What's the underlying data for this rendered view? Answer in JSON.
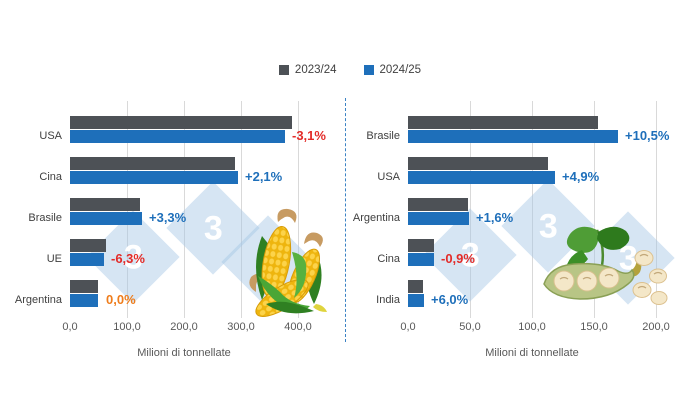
{
  "legend": {
    "items": [
      {
        "label": "2023/24",
        "color": "#4d5156"
      },
      {
        "label": "2024/25",
        "color": "#1e6fba"
      }
    ],
    "position": "top-center"
  },
  "tones": {
    "positive": "#1e6fba",
    "negative": "#e32b28",
    "neutral": "#ef7d1c"
  },
  "text_colors": {
    "category": "#404040",
    "tick": "#595959",
    "axis_title": "#595959"
  },
  "gridline_color": "#d9d9d9",
  "divider_color": "#3b82c4",
  "watermark": {
    "glyph": "3",
    "tile_color": "rgba(164,198,228,0.45)",
    "glyph_color": "#ffffff"
  },
  "chart_data": [
    {
      "type": "bar",
      "orientation": "horizontal",
      "title": "",
      "categories": [
        "USA",
        "Cina",
        "Brasile",
        "UE",
        "Argentina"
      ],
      "series": [
        {
          "name": "2023/24",
          "color": "#4d5156",
          "values": [
            389.7,
            288.8,
            122.0,
            63.4,
            50.0
          ]
        },
        {
          "name": "2024/25",
          "color": "#1e6fba",
          "values": [
            377.6,
            294.9,
            126.0,
            59.4,
            50.0
          ]
        }
      ],
      "change_labels": [
        {
          "text": "-3,1%",
          "tone": "negative"
        },
        {
          "text": "+2,1%",
          "tone": "positive"
        },
        {
          "text": "+3,3%",
          "tone": "positive"
        },
        {
          "text": "-6,3%",
          "tone": "negative"
        },
        {
          "text": "0,0%",
          "tone": "neutral"
        }
      ],
      "xlabel": "Milioni di tonnellate",
      "xlim": [
        0,
        400
      ],
      "xticks": [
        {
          "value": 0,
          "label": "0,0"
        },
        {
          "value": 100,
          "label": "100,0"
        },
        {
          "value": 200,
          "label": "200,0"
        },
        {
          "value": 300,
          "label": "300,0"
        },
        {
          "value": 400,
          "label": "400,0"
        }
      ],
      "grid": true,
      "decoration": "corn-illustration"
    },
    {
      "type": "bar",
      "orientation": "horizontal",
      "title": "",
      "categories": [
        "Brasile",
        "USA",
        "Argentina",
        "Cina",
        "India"
      ],
      "series": [
        {
          "name": "2023/24",
          "color": "#4d5156",
          "values": [
            153.0,
            113.3,
            48.2,
            20.8,
            11.9
          ]
        },
        {
          "name": "2024/25",
          "color": "#1e6fba",
          "values": [
            169.0,
            118.8,
            49.0,
            20.6,
            12.6
          ]
        }
      ],
      "change_labels": [
        {
          "text": "+10,5%",
          "tone": "positive"
        },
        {
          "text": "+4,9%",
          "tone": "positive"
        },
        {
          "text": "+1,6%",
          "tone": "positive"
        },
        {
          "text": "-0,9%",
          "tone": "negative"
        },
        {
          "text": "+6,0%",
          "tone": "positive"
        }
      ],
      "xlabel": "Milioni di tonnellate",
      "xlim": [
        0,
        200
      ],
      "xticks": [
        {
          "value": 0,
          "label": "0,0"
        },
        {
          "value": 50,
          "label": "50,0"
        },
        {
          "value": 100,
          "label": "100,0"
        },
        {
          "value": 150,
          "label": "150,0"
        },
        {
          "value": 200,
          "label": "200,0"
        }
      ],
      "grid": true,
      "decoration": "soybean-illustration"
    }
  ]
}
